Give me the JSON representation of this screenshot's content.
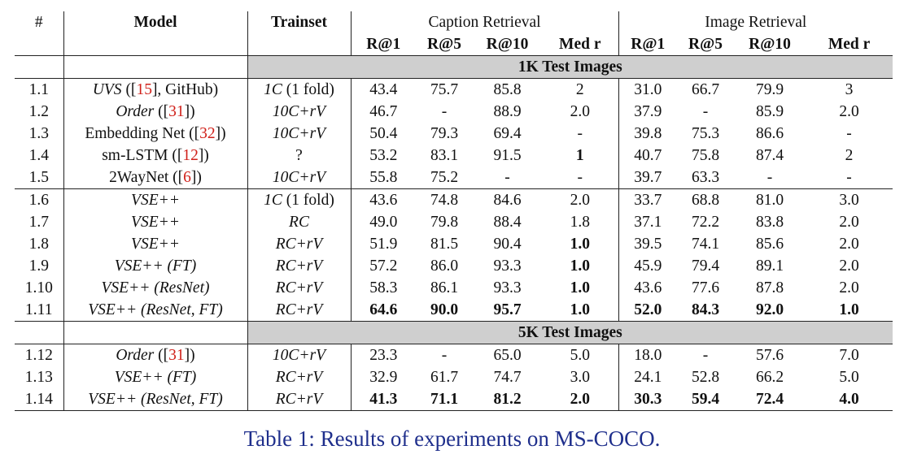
{
  "headers": {
    "num": "#",
    "model": "Model",
    "trainset": "Trainset",
    "caption_group": "Caption Retrieval",
    "image_group": "Image Retrieval",
    "metrics": [
      "R@1",
      "R@5",
      "R@10",
      "Med r"
    ]
  },
  "sections": [
    {
      "band": "1K Test Images",
      "rows": [
        {
          "id": "1.1",
          "model": {
            "a": "UVS",
            "b": " ([",
            "c": "15",
            "d": "], GitHub)"
          },
          "train": {
            "a": "1C",
            "b": " (1 fold)"
          },
          "cap": [
            "43.4",
            "75.7",
            "85.8",
            "2"
          ],
          "img": [
            "31.0",
            "66.7",
            "79.9",
            "3"
          ]
        },
        {
          "id": "1.2",
          "model": {
            "a": "Order",
            "b": " ([",
            "c": "31",
            "d": "])"
          },
          "train": {
            "a": "10C+rV",
            "b": ""
          },
          "cap": [
            "46.7",
            "-",
            "88.9",
            "2.0"
          ],
          "img": [
            "37.9",
            "-",
            "85.9",
            "2.0"
          ]
        },
        {
          "id": "1.3",
          "model": {
            "a": "",
            "b": "Embedding Net ([",
            "c": "32",
            "d": "])"
          },
          "train": {
            "a": "10C+rV",
            "b": ""
          },
          "cap": [
            "50.4",
            "79.3",
            "69.4",
            "-"
          ],
          "img": [
            "39.8",
            "75.3",
            "86.6",
            "-"
          ]
        },
        {
          "id": "1.4",
          "model": {
            "a": "",
            "b": "sm-LSTM ([",
            "c": "12",
            "d": "])"
          },
          "train": {
            "a": "",
            "b": "?"
          },
          "cap": [
            "53.2",
            "83.1",
            "91.5",
            "1"
          ],
          "img": [
            "40.7",
            "75.8",
            "87.4",
            "2"
          ]
        },
        {
          "id": "1.5",
          "model": {
            "a": "",
            "b": "2WayNet ([",
            "c": "6",
            "d": "])"
          },
          "train": {
            "a": "10C+rV",
            "b": ""
          },
          "cap": [
            "55.8",
            "75.2",
            "-",
            "-"
          ],
          "img": [
            "39.7",
            "63.3",
            "-",
            "-"
          ]
        },
        {
          "id": "1.6",
          "model": {
            "a": "VSE++",
            "b": "",
            "c": "",
            "d": ""
          },
          "train": {
            "a": "1C",
            "b": " (1 fold)"
          },
          "cap": [
            "43.6",
            "74.8",
            "84.6",
            "2.0"
          ],
          "img": [
            "33.7",
            "68.8",
            "81.0",
            "3.0"
          ]
        },
        {
          "id": "1.7",
          "model": {
            "a": "VSE++",
            "b": "",
            "c": "",
            "d": ""
          },
          "train": {
            "a": "RC",
            "b": ""
          },
          "cap": [
            "49.0",
            "79.8",
            "88.4",
            "1.8"
          ],
          "img": [
            "37.1",
            "72.2",
            "83.8",
            "2.0"
          ]
        },
        {
          "id": "1.8",
          "model": {
            "a": "VSE++",
            "b": "",
            "c": "",
            "d": ""
          },
          "train": {
            "a": "RC+rV",
            "b": ""
          },
          "cap": [
            "51.9",
            "81.5",
            "90.4",
            "1.0"
          ],
          "img": [
            "39.5",
            "74.1",
            "85.6",
            "2.0"
          ]
        },
        {
          "id": "1.9",
          "model": {
            "a": "VSE++ (FT)",
            "b": "",
            "c": "",
            "d": ""
          },
          "train": {
            "a": "RC+rV",
            "b": ""
          },
          "cap": [
            "57.2",
            "86.0",
            "93.3",
            "1.0"
          ],
          "img": [
            "45.9",
            "79.4",
            "89.1",
            "2.0"
          ]
        },
        {
          "id": "1.10",
          "model": {
            "a": "VSE++ (ResNet)",
            "b": "",
            "c": "",
            "d": ""
          },
          "train": {
            "a": "RC+rV",
            "b": ""
          },
          "cap": [
            "58.3",
            "86.1",
            "93.3",
            "1.0"
          ],
          "img": [
            "43.6",
            "77.6",
            "87.8",
            "2.0"
          ]
        },
        {
          "id": "1.11",
          "model": {
            "a": "VSE++ (ResNet, FT)",
            "b": "",
            "c": "",
            "d": ""
          },
          "train": {
            "a": "RC+rV",
            "b": ""
          },
          "cap": [
            "64.6",
            "90.0",
            "95.7",
            "1.0"
          ],
          "img": [
            "52.0",
            "84.3",
            "92.0",
            "1.0"
          ]
        }
      ]
    },
    {
      "band": "5K Test Images",
      "rows": [
        {
          "id": "1.12",
          "model": {
            "a": "Order",
            "b": " ([",
            "c": "31",
            "d": "])"
          },
          "train": {
            "a": "10C+rV",
            "b": ""
          },
          "cap": [
            "23.3",
            "-",
            "65.0",
            "5.0"
          ],
          "img": [
            "18.0",
            "-",
            "57.6",
            "7.0"
          ]
        },
        {
          "id": "1.13",
          "model": {
            "a": "VSE++ (FT)",
            "b": "",
            "c": "",
            "d": ""
          },
          "train": {
            "a": "RC+rV",
            "b": ""
          },
          "cap": [
            "32.9",
            "61.7",
            "74.7",
            "3.0"
          ],
          "img": [
            "24.1",
            "52.8",
            "66.2",
            "5.0"
          ]
        },
        {
          "id": "1.14",
          "model": {
            "a": "VSE++ (ResNet, FT)",
            "b": "",
            "c": "",
            "d": ""
          },
          "train": {
            "a": "RC+rV",
            "b": ""
          },
          "cap": [
            "41.3",
            "71.1",
            "81.2",
            "2.0"
          ],
          "img": [
            "30.3",
            "59.4",
            "72.4",
            "4.0"
          ]
        }
      ]
    }
  ],
  "caption": "Table 1: Results of experiments on MS-COCO.",
  "colors": {
    "citation": "#d0201a",
    "caption": "#1f2f8c",
    "band": "#cfcfcf"
  }
}
